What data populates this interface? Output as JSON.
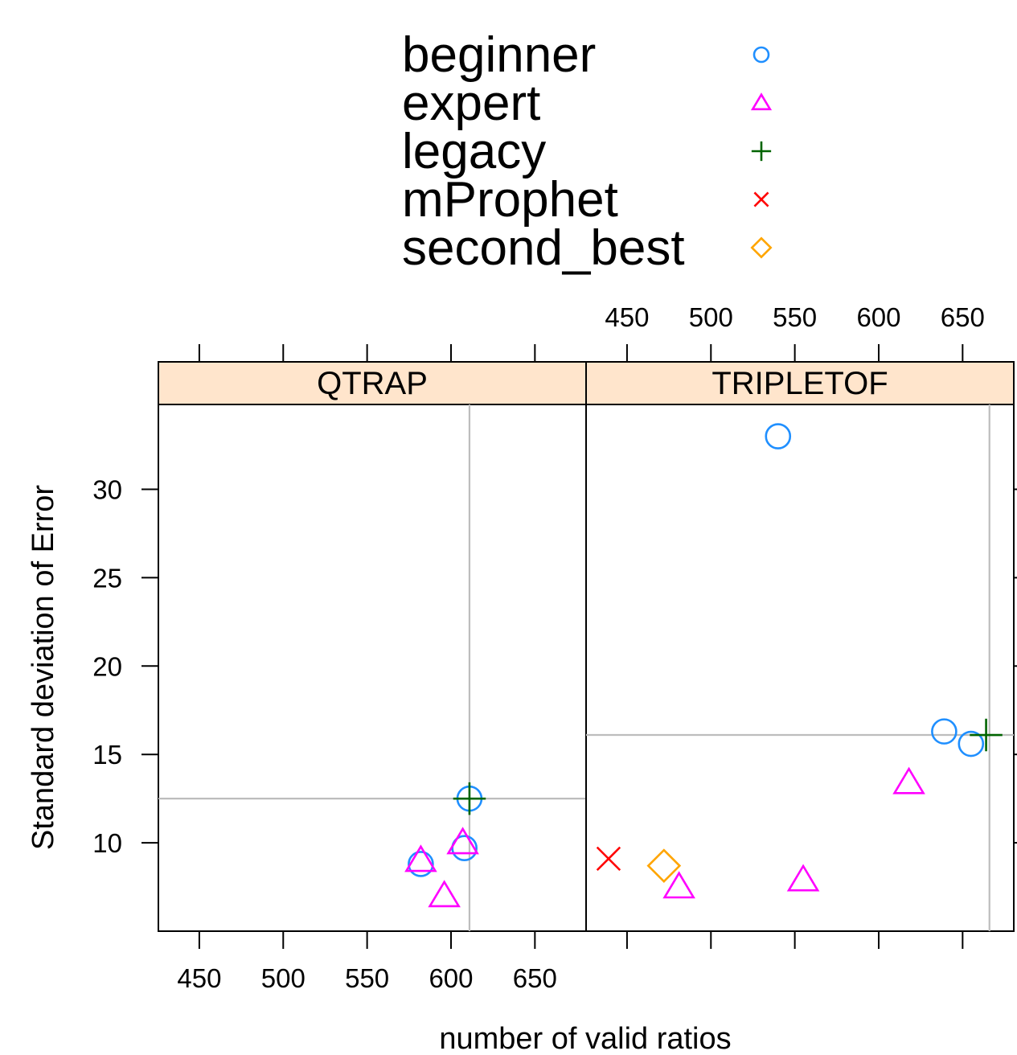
{
  "chart_data": {
    "type": "scatter",
    "xlabel": "number of valid ratios",
    "ylabel": "Standard deviation of Error",
    "xlim": [
      425.6,
      680.5
    ],
    "ylim": [
      5.0,
      34.8
    ],
    "xticks": [
      450,
      500,
      550,
      600,
      650
    ],
    "yticks": [
      10,
      15,
      20,
      25,
      30
    ],
    "legend": {
      "position": "top",
      "entries": [
        {
          "name": "beginner",
          "color": "#1f8fff",
          "marker": "circle"
        },
        {
          "name": "expert",
          "color": "#ff00ff",
          "marker": "triangle"
        },
        {
          "name": "legacy",
          "color": "#006400",
          "marker": "plus"
        },
        {
          "name": "mProphet",
          "color": "#ff0000",
          "marker": "cross"
        },
        {
          "name": "second_best",
          "color": "#ffa500",
          "marker": "diamond"
        }
      ]
    },
    "panels": [
      {
        "name": "QTRAP",
        "strip_color": "#ffe5cc",
        "reference_lines": {
          "x": 611,
          "y": 12.5
        },
        "points": [
          {
            "series": "beginner",
            "x": 582,
            "y": 8.8
          },
          {
            "series": "beginner",
            "x": 608,
            "y": 9.7
          },
          {
            "series": "beginner",
            "x": 611,
            "y": 12.5
          },
          {
            "series": "expert",
            "x": 582,
            "y": 9.0
          },
          {
            "series": "expert",
            "x": 596,
            "y": 7.0
          },
          {
            "series": "expert",
            "x": 607,
            "y": 10.0
          },
          {
            "series": "legacy",
            "x": 611,
            "y": 12.5
          }
        ]
      },
      {
        "name": "TRIPLETOF",
        "strip_color": "#ffe5cc",
        "reference_lines": {
          "x": 666,
          "y": 16.1
        },
        "points": [
          {
            "series": "beginner",
            "x": 540,
            "y": 33.0
          },
          {
            "series": "beginner",
            "x": 639,
            "y": 16.3
          },
          {
            "series": "beginner",
            "x": 655,
            "y": 15.6
          },
          {
            "series": "expert",
            "x": 618,
            "y": 13.4
          },
          {
            "series": "expert",
            "x": 555,
            "y": 7.9
          },
          {
            "series": "expert",
            "x": 481,
            "y": 7.5
          },
          {
            "series": "legacy",
            "x": 664,
            "y": 16.1
          },
          {
            "series": "mProphet",
            "x": 439,
            "y": 9.1
          },
          {
            "series": "second_best",
            "x": 472,
            "y": 8.7
          }
        ]
      }
    ]
  }
}
